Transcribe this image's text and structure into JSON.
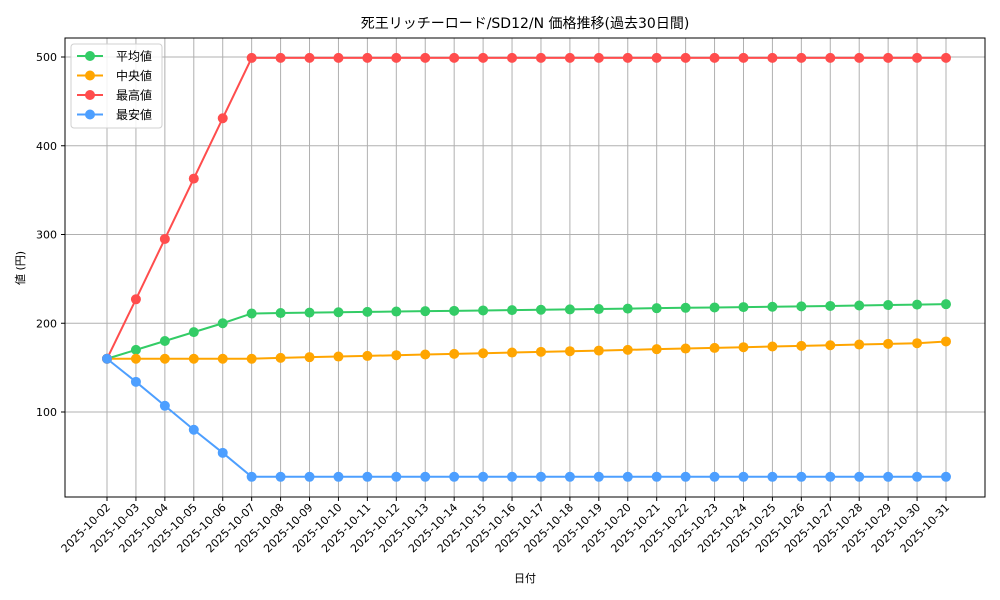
{
  "chart_data": {
    "type": "line",
    "title": "死王リッチーロード/SD12/N 価格推移(過去30日間)",
    "xlabel": "日付",
    "ylabel": "値 (円)",
    "ylim": [
      8,
      520
    ],
    "yticks": [
      100,
      200,
      300,
      400,
      500
    ],
    "grid": true,
    "legend_position": "upper left",
    "categories": [
      "2025-10-02",
      "2025-10-03",
      "2025-10-04",
      "2025-10-05",
      "2025-10-06",
      "2025-10-07",
      "2025-10-08",
      "2025-10-09",
      "2025-10-10",
      "2025-10-11",
      "2025-10-12",
      "2025-10-13",
      "2025-10-14",
      "2025-10-15",
      "2025-10-16",
      "2025-10-17",
      "2025-10-18",
      "2025-10-19",
      "2025-10-20",
      "2025-10-21",
      "2025-10-22",
      "2025-10-23",
      "2025-10-24",
      "2025-10-25",
      "2025-10-26",
      "2025-10-27",
      "2025-10-28",
      "2025-10-29",
      "2025-10-30",
      "2025-10-31"
    ],
    "series": [
      {
        "name": "平均値",
        "color": "#33cc66",
        "values": [
          160,
          170,
          180,
          190,
          200,
          211,
          211.5,
          212,
          212.4,
          212.8,
          213.2,
          213.6,
          214,
          214.4,
          214.8,
          215.2,
          215.6,
          216,
          216.5,
          217,
          217.4,
          217.8,
          218.2,
          218.6,
          219,
          219.5,
          220,
          220.5,
          221,
          221.5
        ]
      },
      {
        "name": "中央値",
        "color": "#ffa500",
        "values": [
          160,
          160,
          160,
          160,
          160,
          160,
          161,
          161.8,
          162.5,
          163.2,
          164,
          164.8,
          165.5,
          166.2,
          167,
          167.8,
          168.5,
          169.2,
          170,
          170.8,
          171.5,
          172.2,
          173,
          173.8,
          174.5,
          175.2,
          176,
          176.8,
          177.5,
          179.5
        ]
      },
      {
        "name": "最高値",
        "color": "#ff4d4d",
        "values": [
          160,
          227,
          295,
          363,
          431,
          499,
          499,
          499,
          499,
          499,
          499,
          499,
          499,
          499,
          499,
          499,
          499,
          499,
          499,
          499,
          499,
          499,
          499,
          499,
          499,
          499,
          499,
          499,
          499,
          499
        ]
      },
      {
        "name": "最安値",
        "color": "#4d9fff",
        "values": [
          160,
          134,
          107,
          80,
          54,
          27,
          27,
          27,
          27,
          27,
          27,
          27,
          27,
          27,
          27,
          27,
          27,
          27,
          27,
          27,
          27,
          27,
          27,
          27,
          27,
          27,
          27,
          27,
          27,
          27
        ]
      }
    ]
  }
}
